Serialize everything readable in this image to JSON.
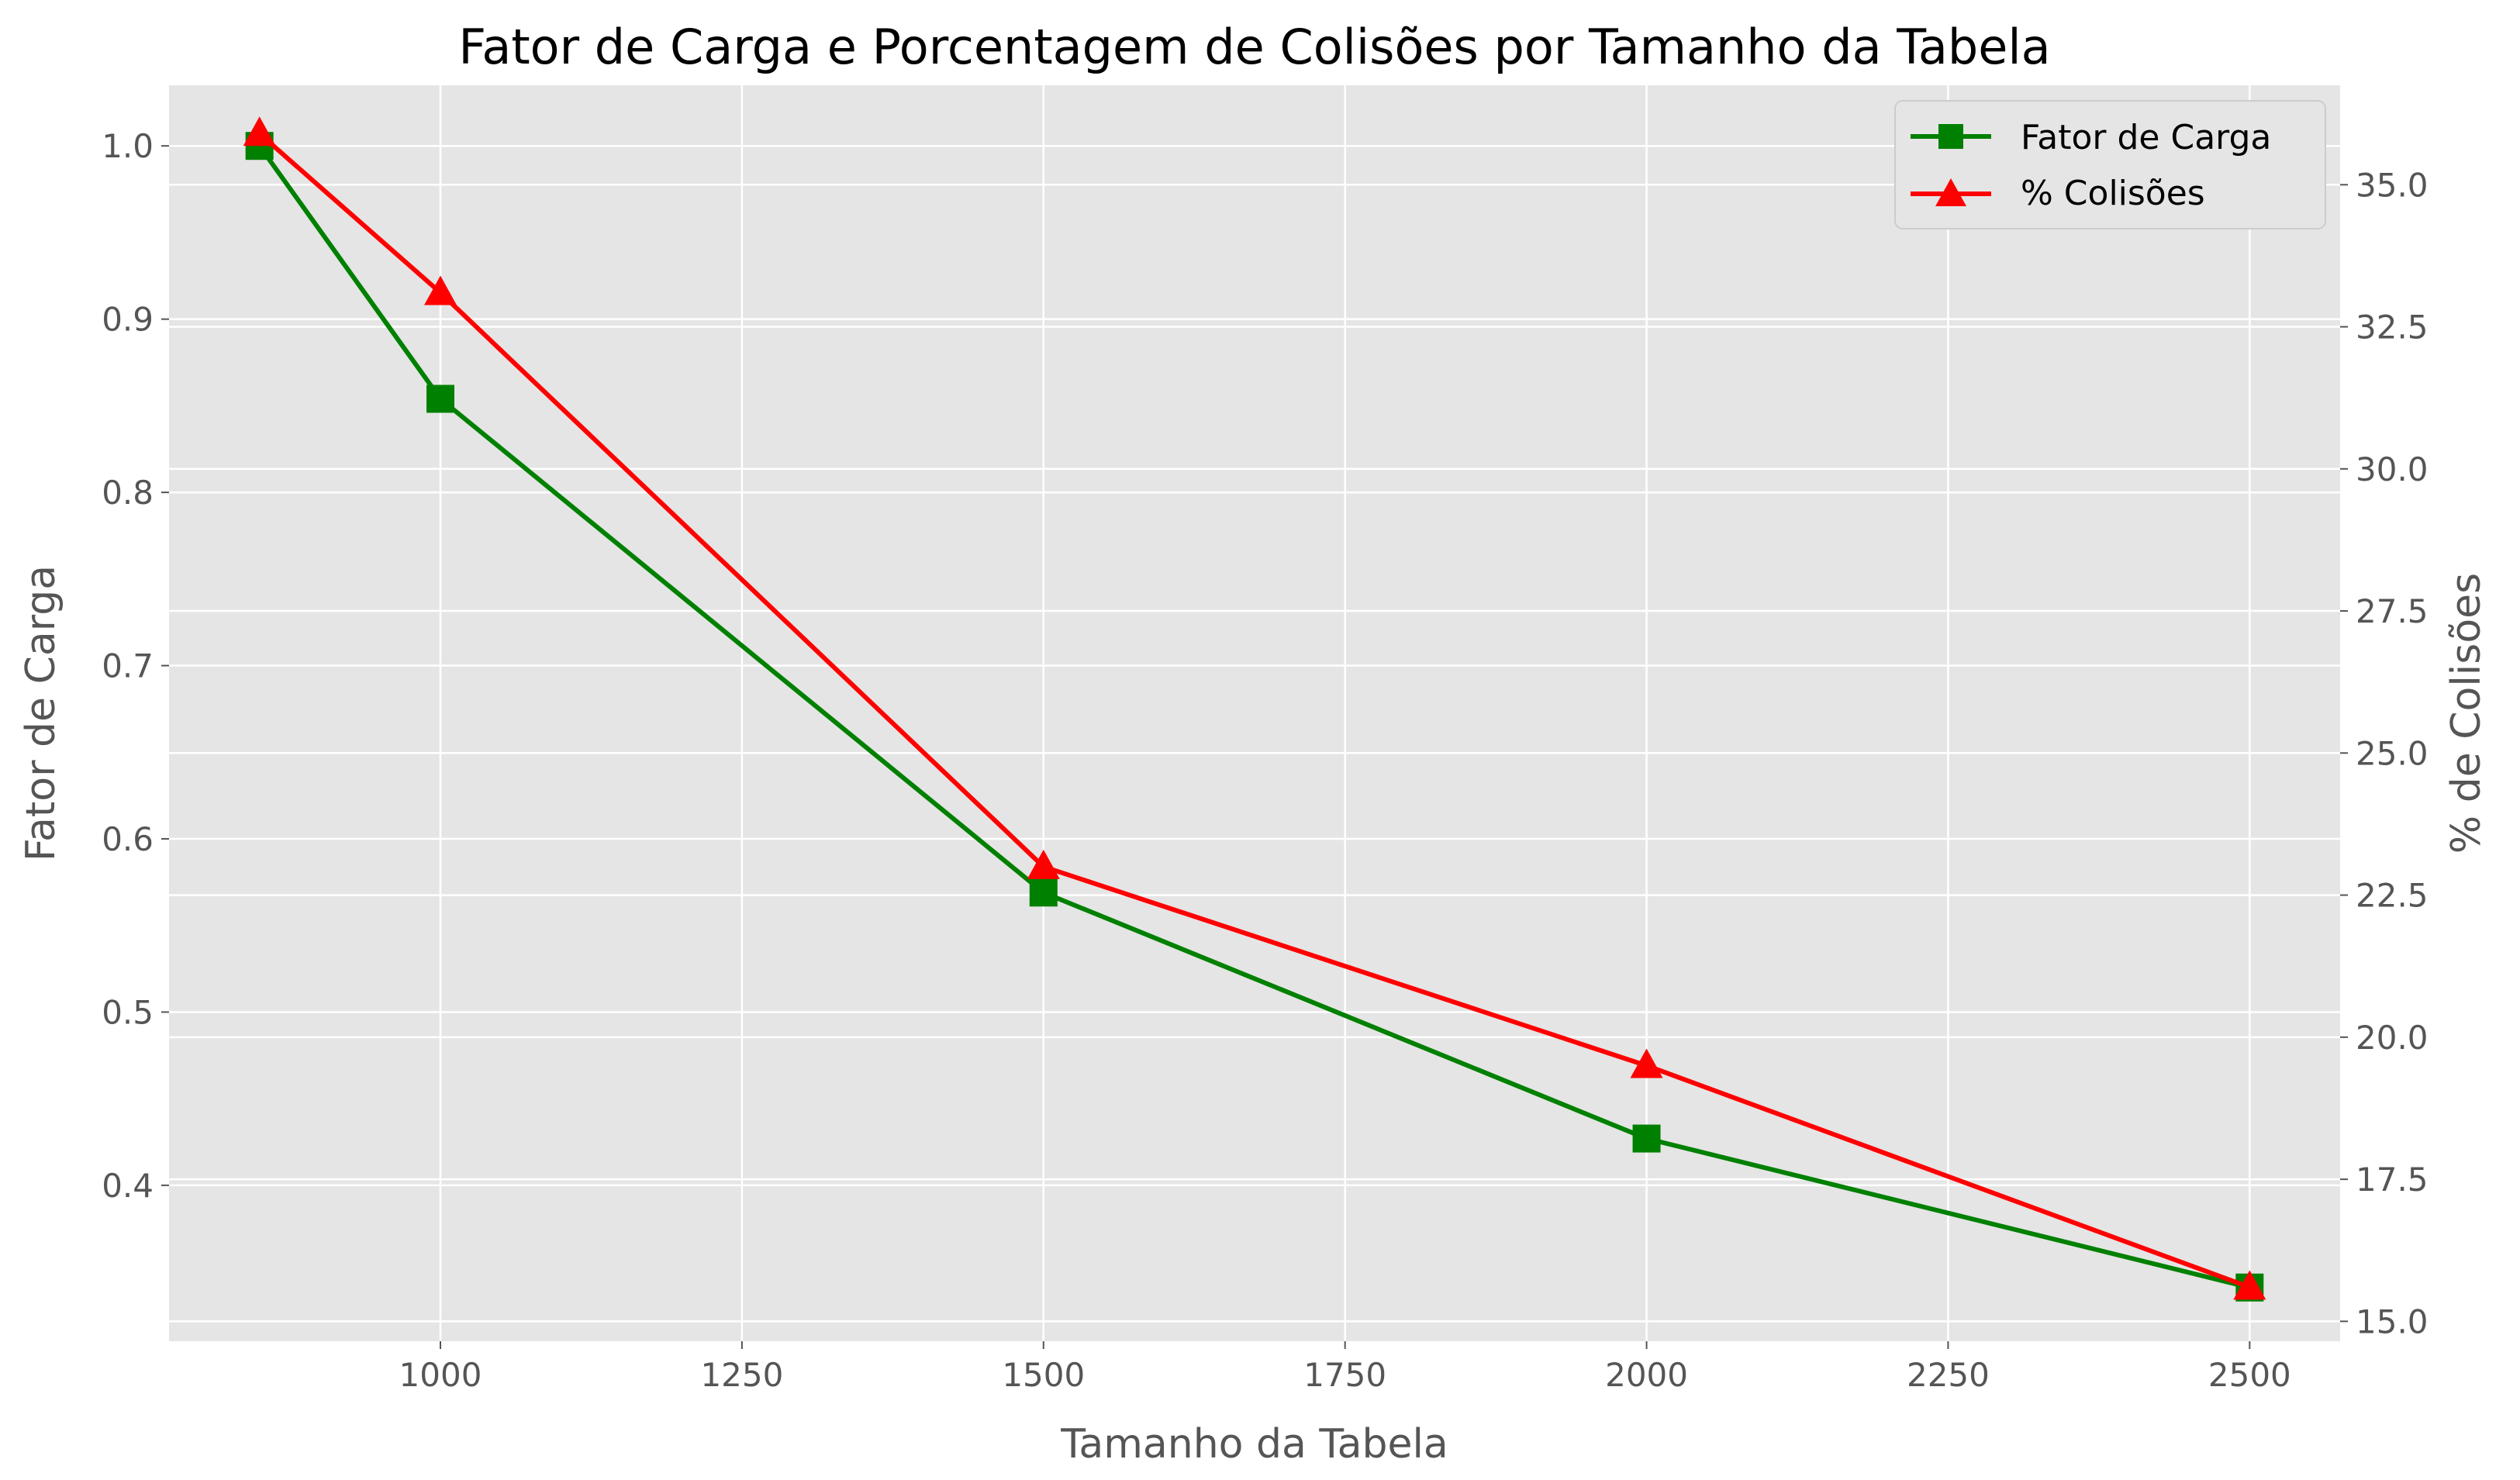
{
  "chart_data": {
    "type": "line",
    "title": "Fator de Carga e Porcentagem de Colisões por Tamanho da Tabela",
    "xlabel": "Tamanho da Tabela",
    "ylabel_left": "Fator de Carga",
    "ylabel_right": "% de Colisões",
    "x": [
      850,
      1000,
      1500,
      2000,
      2500
    ],
    "xlim": [
      775,
      2575
    ],
    "ylim_left": [
      0.31,
      1.035
    ],
    "ylim_right": [
      14.65,
      36.75
    ],
    "xticks": [
      1000,
      1250,
      1500,
      1750,
      2000,
      2250,
      2500
    ],
    "yticks_left": [
      "0.4",
      "0.5",
      "0.6",
      "0.7",
      "0.8",
      "0.9",
      "1.0"
    ],
    "yticks_right": [
      "15.0",
      "17.5",
      "20.0",
      "22.5",
      "25.0",
      "27.5",
      "30.0",
      "32.5",
      "35.0"
    ],
    "grid": true,
    "legend_position": "top-right",
    "series": [
      {
        "name": "Fator de Carga",
        "axis": "left",
        "color": "#008000",
        "marker": "square",
        "values": [
          1.0,
          0.854,
          0.569,
          0.427,
          0.341
        ]
      },
      {
        "name": "% Colisões",
        "axis": "right",
        "color": "#ff0000",
        "marker": "triangle",
        "values": [
          35.9,
          33.1,
          23.0,
          19.5,
          15.6
        ]
      }
    ]
  }
}
